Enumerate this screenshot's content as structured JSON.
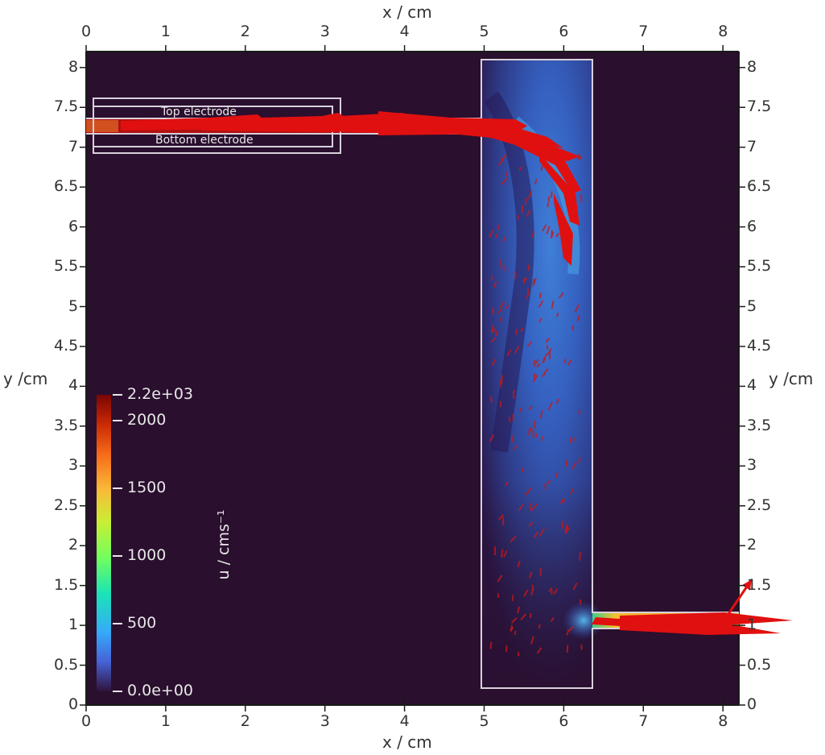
{
  "chart_data": {
    "type": "heatmap",
    "subtype": "2D velocity magnitude field with velocity vector glyphs (ParaView-style render)",
    "title": "",
    "xlabel": "x / cm",
    "ylabel": "y /cm",
    "xlim": [
      0,
      8.2
    ],
    "ylim": [
      0,
      8.2
    ],
    "x_ticks": [
      "0",
      "1",
      "2",
      "3",
      "4",
      "5",
      "6",
      "7",
      "8"
    ],
    "y_ticks": [
      "0",
      "0.5",
      "1",
      "1.5",
      "2",
      "2.5",
      "3",
      "3.5",
      "4",
      "4.5",
      "5",
      "5.5",
      "6",
      "6.5",
      "7",
      "7.5",
      "8"
    ],
    "axes_mirrored": true,
    "grid": false,
    "background_color": "#2a0f2e",
    "colorbar": {
      "label": "u / cms⁻¹",
      "colormap": "turbo/jet",
      "range": [
        0,
        2200
      ],
      "tick_labels": [
        "0.0e+00",
        "500",
        "1000",
        "1500",
        "2000",
        "2.2e+03"
      ],
      "tick_values": [
        0,
        500,
        1000,
        1500,
        2000,
        2200
      ],
      "position": "left-inside"
    },
    "geometry": {
      "inlet_channel": {
        "x": [
          0,
          5.0
        ],
        "y": [
          7.17,
          7.33
        ]
      },
      "electrode_outer_box": {
        "x": [
          0.1,
          3.2
        ],
        "y": [
          6.92,
          7.6
        ]
      },
      "electrode_inner_box": {
        "x": [
          0.1,
          3.1
        ],
        "y": [
          7.0,
          7.5
        ]
      },
      "chamber": {
        "x": [
          4.95,
          6.35
        ],
        "y": [
          0.2,
          8.05
        ]
      },
      "outlet_channel": {
        "x": [
          6.35,
          8.2
        ],
        "y": [
          0.95,
          1.15
        ]
      }
    },
    "annotations": [
      "Top electrode",
      "Bottom electrode"
    ],
    "field_description": {
      "inlet_jet_speed": "~2000-2200 (red) along y≈7.25 from x=0 to x≈5",
      "chamber_flow": "jet curves down along right wall, 200-700 (blue/cyan), recirculation near left wall",
      "outlet_speed": "~1300-1800 (yellow/orange) along y≈1.05 from x≈6.35 to 8.2",
      "max_value": 2200
    }
  },
  "labels": {
    "x_top_title": "x / cm",
    "x_bottom_title": "x / cm",
    "y_left_title": "y /cm",
    "y_right_title": "y /cm",
    "top_electrode": "Top electrode",
    "bottom_electrode": "Bottom electrode",
    "colorbar_title": "u / cms⁻¹"
  },
  "colors": {
    "background_field": "#2a0f2e",
    "geometry_outline": "#d8d0dc",
    "vector_glyph": "#e01010",
    "axis_text": "#333333"
  }
}
